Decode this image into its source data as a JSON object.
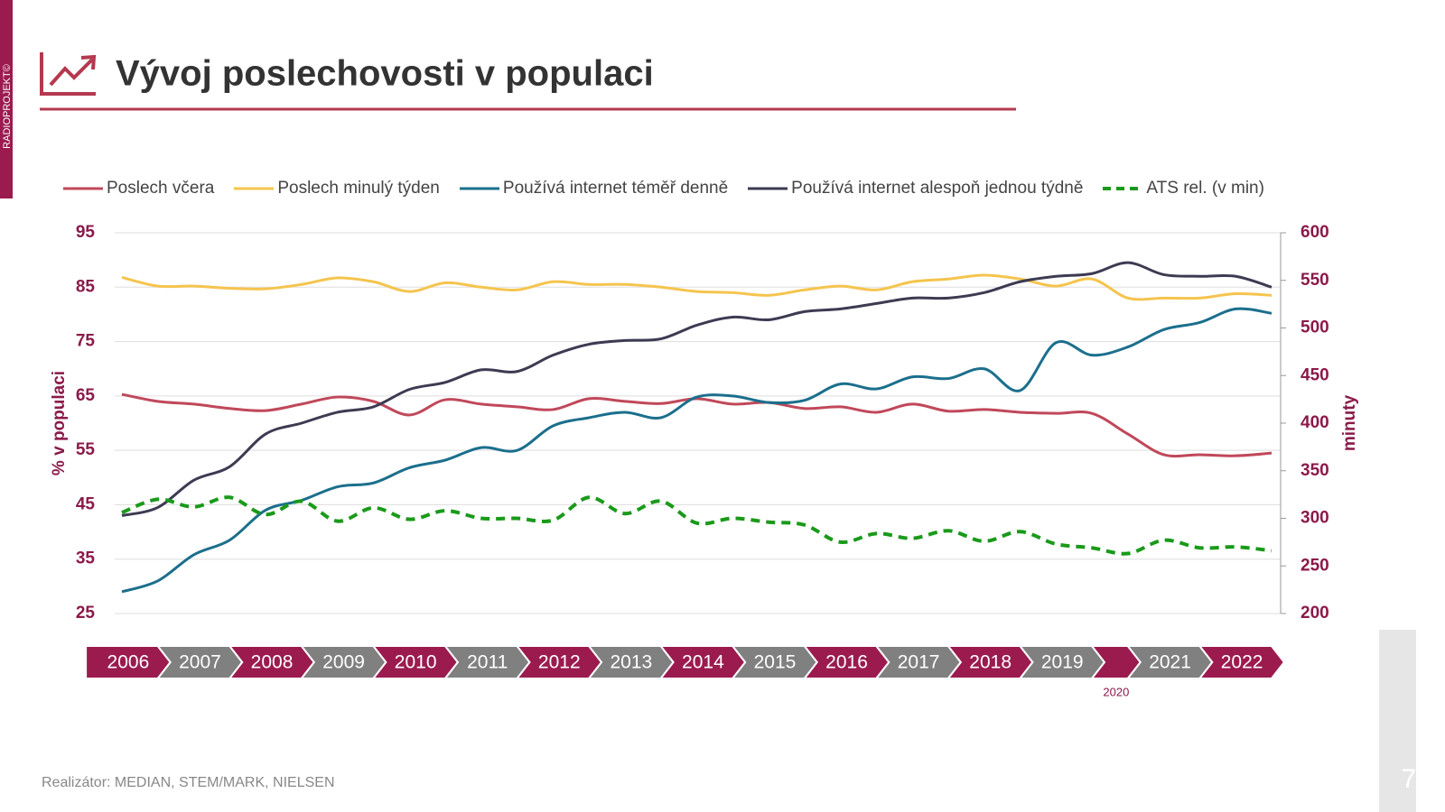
{
  "brand": "RADIOPROJEKT©",
  "footer": "Realizátor: MEDIAN, STEM/MARK, NIELSEN",
  "page_number": "7",
  "chart_data": {
    "type": "line",
    "title": "Vývoj poslechovosti v populaci",
    "y_label": "% v populaci",
    "y2_label": "minuty",
    "legend": "top",
    "grid": true,
    "categories": [
      "2006",
      null,
      "2007",
      null,
      "2008",
      null,
      "2009",
      null,
      "2010",
      null,
      "2011",
      null,
      "2012",
      null,
      "2013",
      null,
      "2014",
      null,
      "2015",
      null,
      "2016",
      null,
      "2017",
      null,
      "2018",
      null,
      "2019",
      null,
      "2020",
      "2021",
      null,
      "2022",
      null
    ],
    "category_colors": [
      "#9b1b4f",
      "#808080"
    ],
    "ylim": [
      25,
      95
    ],
    "yticks": [
      25,
      35,
      45,
      55,
      65,
      75,
      85,
      95
    ],
    "y2lim": [
      200,
      600
    ],
    "y2ticks": [
      200,
      250,
      300,
      350,
      400,
      450,
      500,
      550,
      600
    ],
    "series": [
      {
        "name": "Poslech včera",
        "color": "#c0485a",
        "values": [
          65.3,
          64,
          63.5,
          62.7,
          62.3,
          63.5,
          64.8,
          64,
          61.5,
          64.3,
          63.5,
          63,
          62.5,
          64.5,
          64,
          63.6,
          64.5,
          63.5,
          63.8,
          62.7,
          63,
          62,
          63.5,
          62.2,
          62.5,
          62,
          61.8,
          61.8,
          58,
          54.2,
          54.2,
          54,
          54.5
        ]
      },
      {
        "name": "Poslech minulý týden",
        "color": "#f5c44e",
        "values": [
          86.8,
          85.2,
          85.2,
          84.8,
          84.7,
          85.5,
          86.7,
          86,
          84.2,
          85.8,
          85,
          84.5,
          86,
          85.5,
          85.5,
          85,
          84.2,
          84,
          83.5,
          84.5,
          85.2,
          84.5,
          86,
          86.5,
          87.2,
          86.5,
          85.2,
          86.5,
          83,
          83,
          83,
          83.8,
          83.5
        ]
      },
      {
        "name": "Používá internet téměř denně",
        "color": "#1b6f8c",
        "values": [
          29,
          31,
          35.8,
          38.5,
          44,
          45.8,
          48.3,
          49,
          51.8,
          53.2,
          55.5,
          55,
          59.5,
          61,
          62,
          61,
          64.8,
          65,
          63.8,
          64.2,
          67.2,
          66.3,
          68.5,
          68.2,
          70,
          66,
          74.8,
          72.5,
          74,
          77.2,
          78.5,
          81,
          80.2
        ]
      },
      {
        "name": "Používá internet alespoň jednou týdně",
        "color": "#3d3b52",
        "values": [
          43,
          44.5,
          49.5,
          52,
          58,
          60,
          62,
          63,
          66.2,
          67.5,
          69.8,
          69.5,
          72.5,
          74.5,
          75.2,
          75.5,
          78,
          79.5,
          79,
          80.5,
          81,
          82,
          83,
          83,
          84,
          86,
          87,
          87.5,
          89.5,
          87.3,
          87,
          87,
          85
        ]
      },
      {
        "name": "ATS rel. (v min)",
        "color": "#1a9a1a",
        "dashed": true,
        "axis": "y2",
        "values": [
          306,
          320,
          312,
          322,
          304,
          318,
          297,
          311,
          299,
          308,
          300,
          300,
          298,
          322,
          305,
          318,
          295,
          300,
          296,
          293,
          275,
          284,
          279,
          287,
          276,
          286,
          273,
          269,
          263,
          277,
          269,
          270,
          266
        ]
      }
    ]
  }
}
